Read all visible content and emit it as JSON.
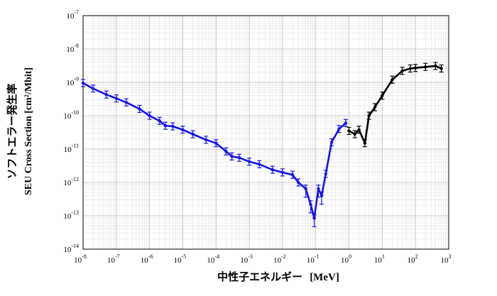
{
  "chart_data": {
    "type": "scatter",
    "x_scale": "log",
    "y_scale": "log",
    "xlim": [
      1e-08,
      1000.0
    ],
    "ylim": [
      1e-14,
      1e-07
    ],
    "grid": true,
    "x_ticks": [
      {
        "base": "10",
        "exp": "-8"
      },
      {
        "base": "10",
        "exp": "-7"
      },
      {
        "base": "10",
        "exp": "-6"
      },
      {
        "base": "10",
        "exp": "-5"
      },
      {
        "base": "10",
        "exp": "-4"
      },
      {
        "base": "10",
        "exp": "-3"
      },
      {
        "base": "10",
        "exp": "-2"
      },
      {
        "base": "10",
        "exp": "-1"
      },
      {
        "base": "10",
        "exp": "0"
      },
      {
        "base": "10",
        "exp": "1"
      },
      {
        "base": "10",
        "exp": "2"
      },
      {
        "base": "10",
        "exp": "3"
      }
    ],
    "y_ticks": [
      {
        "base": "10",
        "exp": "-14"
      },
      {
        "base": "10",
        "exp": "-13"
      },
      {
        "base": "10",
        "exp": "-12"
      },
      {
        "base": "10",
        "exp": "-11"
      },
      {
        "base": "10",
        "exp": "-10"
      },
      {
        "base": "10",
        "exp": "-9"
      },
      {
        "base": "10",
        "exp": "-8"
      },
      {
        "base": "10",
        "exp": "-7"
      }
    ],
    "xlabel": {
      "main": "中性子エネルギー",
      "unit": "[MeV]"
    },
    "ylabel": {
      "line1": "ソフトエラー発生率",
      "line2": "SEU Cross Section [cm²/Mbit]"
    },
    "series": [
      {
        "color": "#1414e6",
        "points": [
          {
            "x": 1e-08,
            "y": 9.5e-10
          },
          {
            "x": 2e-08,
            "y": 6.5e-10
          },
          {
            "x": 5e-08,
            "y": 4.3e-10
          },
          {
            "x": 1e-07,
            "y": 3.3e-10
          },
          {
            "x": 2e-07,
            "y": 2.5e-10
          },
          {
            "x": 5e-07,
            "y": 1.6e-10
          },
          {
            "x": 1e-06,
            "y": 1e-10
          },
          {
            "x": 2e-06,
            "y": 7e-11
          },
          {
            "x": 3e-06,
            "y": 5e-11
          },
          {
            "x": 5e-06,
            "y": 4.8e-11
          },
          {
            "x": 1e-05,
            "y": 3.8e-11
          },
          {
            "x": 2e-05,
            "y": 2.8e-11
          },
          {
            "x": 5e-05,
            "y": 1.9e-11
          },
          {
            "x": 0.0001,
            "y": 1.5e-11
          },
          {
            "x": 0.0002,
            "y": 8.5e-12
          },
          {
            "x": 0.0003,
            "y": 6e-12
          },
          {
            "x": 0.0005,
            "y": 5.5e-12
          },
          {
            "x": 0.001,
            "y": 4.2e-12
          },
          {
            "x": 0.002,
            "y": 3.5e-12
          },
          {
            "x": 0.005,
            "y": 2.4e-12
          },
          {
            "x": 0.01,
            "y": 2e-12
          },
          {
            "x": 0.02,
            "y": 1.7e-12
          },
          {
            "x": 0.03,
            "y": 1e-12
          },
          {
            "x": 0.05,
            "y": 6.5e-13
          },
          {
            "x": 0.07,
            "y": 2.2e-13
          },
          {
            "x": 0.09,
            "y": 8.5e-14
          },
          {
            "x": 0.12,
            "y": 6.5e-13
          },
          {
            "x": 0.15,
            "y": 4e-13
          },
          {
            "x": 0.2,
            "y": 1.8e-12
          },
          {
            "x": 0.3,
            "y": 1.6e-11
          },
          {
            "x": 0.5,
            "y": 4e-11
          },
          {
            "x": 0.8,
            "y": 6e-11
          }
        ]
      },
      {
        "color": "#000000",
        "points": [
          {
            "x": 1.0,
            "y": 3.5e-11
          },
          {
            "x": 1.5,
            "y": 2.8e-11
          },
          {
            "x": 2.0,
            "y": 3.8e-11
          },
          {
            "x": 3.0,
            "y": 1.5e-11
          },
          {
            "x": 4.0,
            "y": 1e-10
          },
          {
            "x": 6.0,
            "y": 1.8e-10
          },
          {
            "x": 10.0,
            "y": 4e-10
          },
          {
            "x": 20.0,
            "y": 1.2e-09
          },
          {
            "x": 40.0,
            "y": 2.2e-09
          },
          {
            "x": 70.0,
            "y": 2.6e-09
          },
          {
            "x": 100.0,
            "y": 2.7e-09
          },
          {
            "x": 200.0,
            "y": 2.9e-09
          },
          {
            "x": 400.0,
            "y": 3.1e-09
          },
          {
            "x": 600.0,
            "y": 2.6e-09
          }
        ]
      }
    ]
  }
}
